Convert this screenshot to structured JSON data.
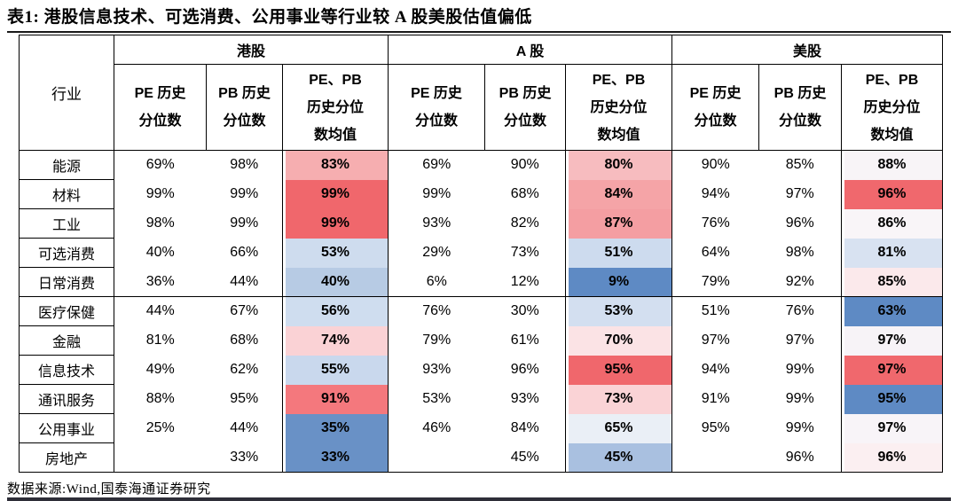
{
  "title": "表1:  港股信息技术、可选消费、公用事业等行业较 A 股美股估值偏低",
  "source": "数据来源:Wind,国泰海通证券研究",
  "table": {
    "industry_header": "行业",
    "groups": [
      {
        "label": "港股",
        "columns": [
          "PE 历史\n分位数",
          "PB 历史\n分位数",
          "PE、PB\n历史分位\n数均值"
        ]
      },
      {
        "label": "A 股",
        "columns": [
          "PE 历史\n分位数",
          "PB 历史\n分位数",
          "PE、PB\n历史分位\n数均值"
        ]
      },
      {
        "label": "美股",
        "columns": [
          "PE 历史\n分位数",
          "PB 历史\n分位数",
          "PE、PB\n历史分位\n数均值"
        ]
      }
    ],
    "rows": [
      {
        "industry": "能源",
        "cells": [
          {
            "v": "69%"
          },
          {
            "v": "98%"
          },
          {
            "v": "83%",
            "bg": "#F6AEB0"
          },
          {
            "v": "69%"
          },
          {
            "v": "90%"
          },
          {
            "v": "80%",
            "bg": "#F7BCBF"
          },
          {
            "v": "90%"
          },
          {
            "v": "85%"
          },
          {
            "v": "88%",
            "bg": "#F8F4F7"
          }
        ]
      },
      {
        "industry": "材料",
        "cells": [
          {
            "v": "99%"
          },
          {
            "v": "99%"
          },
          {
            "v": "99%",
            "bg": "#F0676C"
          },
          {
            "v": "99%"
          },
          {
            "v": "68%"
          },
          {
            "v": "84%",
            "bg": "#F5A4A7"
          },
          {
            "v": "94%"
          },
          {
            "v": "97%"
          },
          {
            "v": "96%",
            "bg": "#F0686D"
          }
        ]
      },
      {
        "industry": "工业",
        "cells": [
          {
            "v": "98%"
          },
          {
            "v": "99%"
          },
          {
            "v": "99%",
            "bg": "#F0676C"
          },
          {
            "v": "93%"
          },
          {
            "v": "82%"
          },
          {
            "v": "87%",
            "bg": "#F49EA2"
          },
          {
            "v": "76%"
          },
          {
            "v": "96%"
          },
          {
            "v": "86%",
            "bg": "#F9F5F8"
          }
        ]
      },
      {
        "industry": "可选消费",
        "cells": [
          {
            "v": "40%"
          },
          {
            "v": "66%"
          },
          {
            "v": "53%",
            "bg": "#CEDCEE"
          },
          {
            "v": "29%"
          },
          {
            "v": "73%"
          },
          {
            "v": "51%",
            "bg": "#CDDBEE"
          },
          {
            "v": "64%"
          },
          {
            "v": "98%"
          },
          {
            "v": "81%",
            "bg": "#D8E2F1"
          }
        ]
      },
      {
        "industry": "日常消费",
        "separator_after": true,
        "cells": [
          {
            "v": "36%"
          },
          {
            "v": "44%"
          },
          {
            "v": "40%",
            "bg": "#B7CBE4"
          },
          {
            "v": "6%"
          },
          {
            "v": "12%"
          },
          {
            "v": "9%",
            "bg": "#5E8AC4"
          },
          {
            "v": "79%"
          },
          {
            "v": "92%"
          },
          {
            "v": "85%",
            "bg": "#FBE9EB"
          }
        ]
      },
      {
        "industry": "医疗保健",
        "cells": [
          {
            "v": "44%"
          },
          {
            "v": "67%"
          },
          {
            "v": "56%",
            "bg": "#CFDDEF"
          },
          {
            "v": "76%"
          },
          {
            "v": "30%"
          },
          {
            "v": "53%",
            "bg": "#D3DFF0"
          },
          {
            "v": "51%"
          },
          {
            "v": "76%"
          },
          {
            "v": "63%",
            "bg": "#5E8AC4"
          }
        ]
      },
      {
        "industry": "金融",
        "cells": [
          {
            "v": "81%"
          },
          {
            "v": "68%"
          },
          {
            "v": "74%",
            "bg": "#FAD2D5"
          },
          {
            "v": "79%"
          },
          {
            "v": "61%"
          },
          {
            "v": "70%",
            "bg": "#FBE3E5"
          },
          {
            "v": "97%"
          },
          {
            "v": "97%"
          },
          {
            "v": "97%",
            "bg": "#F7F3F7"
          }
        ]
      },
      {
        "industry": "信息技术",
        "cells": [
          {
            "v": "49%"
          },
          {
            "v": "62%"
          },
          {
            "v": "55%",
            "bg": "#C9D8ED"
          },
          {
            "v": "93%"
          },
          {
            "v": "96%"
          },
          {
            "v": "95%",
            "bg": "#F0676C"
          },
          {
            "v": "94%"
          },
          {
            "v": "99%"
          },
          {
            "v": "97%",
            "bg": "#F0686D"
          }
        ]
      },
      {
        "industry": "通讯服务",
        "cells": [
          {
            "v": "88%"
          },
          {
            "v": "95%"
          },
          {
            "v": "91%",
            "bg": "#F4787D"
          },
          {
            "v": "53%"
          },
          {
            "v": "93%"
          },
          {
            "v": "73%",
            "bg": "#FAD3D6"
          },
          {
            "v": "91%"
          },
          {
            "v": "99%"
          },
          {
            "v": "95%",
            "bg": "#5E8AC4"
          }
        ]
      },
      {
        "industry": "公用事业",
        "cells": [
          {
            "v": "25%"
          },
          {
            "v": "44%"
          },
          {
            "v": "35%",
            "bg": "#6991C6"
          },
          {
            "v": "46%"
          },
          {
            "v": "84%"
          },
          {
            "v": "65%",
            "bg": "#EAEFF6"
          },
          {
            "v": "95%"
          },
          {
            "v": "99%"
          },
          {
            "v": "97%",
            "bg": "#F8F4F8"
          }
        ]
      },
      {
        "industry": "房地产",
        "cells": [
          {
            "v": ""
          },
          {
            "v": "33%"
          },
          {
            "v": "33%",
            "bg": "#6991C6"
          },
          {
            "v": ""
          },
          {
            "v": "45%"
          },
          {
            "v": "45%",
            "bg": "#A9C0E0"
          },
          {
            "v": ""
          },
          {
            "v": "96%"
          },
          {
            "v": "96%",
            "bg": "#FBEFF1"
          }
        ]
      }
    ]
  },
  "chart_data": {
    "type": "table",
    "title": "表1: 港股信息技术、可选消费、公用事业等行业较 A 股美股估值偏低",
    "column_groups": [
      "港股",
      "A 股",
      "美股"
    ],
    "columns_per_group": [
      "PE 历史分位数",
      "PB 历史分位数",
      "PE、PB 历史分位数均值"
    ],
    "row_header": "行业",
    "categories": [
      "能源",
      "材料",
      "工业",
      "可选消费",
      "日常消费",
      "医疗保健",
      "金融",
      "信息技术",
      "通讯服务",
      "公用事业",
      "房地产"
    ],
    "series": [
      {
        "name": "港股 PE 历史分位数",
        "values": [
          69,
          99,
          98,
          40,
          36,
          44,
          81,
          49,
          88,
          25,
          null
        ]
      },
      {
        "name": "港股 PB 历史分位数",
        "values": [
          98,
          99,
          99,
          66,
          44,
          67,
          68,
          62,
          95,
          44,
          33
        ]
      },
      {
        "name": "港股 PE、PB 历史分位数均值",
        "values": [
          83,
          99,
          99,
          53,
          40,
          56,
          74,
          55,
          91,
          35,
          33
        ]
      },
      {
        "name": "A股 PE 历史分位数",
        "values": [
          69,
          99,
          93,
          29,
          6,
          76,
          79,
          93,
          53,
          46,
          null
        ]
      },
      {
        "name": "A股 PB 历史分位数",
        "values": [
          90,
          68,
          82,
          73,
          12,
          30,
          61,
          96,
          93,
          84,
          45
        ]
      },
      {
        "name": "A股 PE、PB 历史分位数均值",
        "values": [
          80,
          84,
          87,
          51,
          9,
          53,
          70,
          95,
          73,
          65,
          45
        ]
      },
      {
        "name": "美股 PE 历史分位数",
        "values": [
          90,
          94,
          76,
          64,
          79,
          51,
          97,
          94,
          91,
          95,
          null
        ]
      },
      {
        "name": "美股 PB 历史分位数",
        "values": [
          85,
          97,
          96,
          98,
          92,
          76,
          97,
          99,
          99,
          99,
          96
        ]
      },
      {
        "name": "美股 PE、PB 历史分位数均值",
        "values": [
          88,
          96,
          86,
          81,
          85,
          63,
          97,
          97,
          95,
          97,
          96
        ]
      }
    ],
    "source": "数据来源:Wind,国泰海通证券研究"
  }
}
